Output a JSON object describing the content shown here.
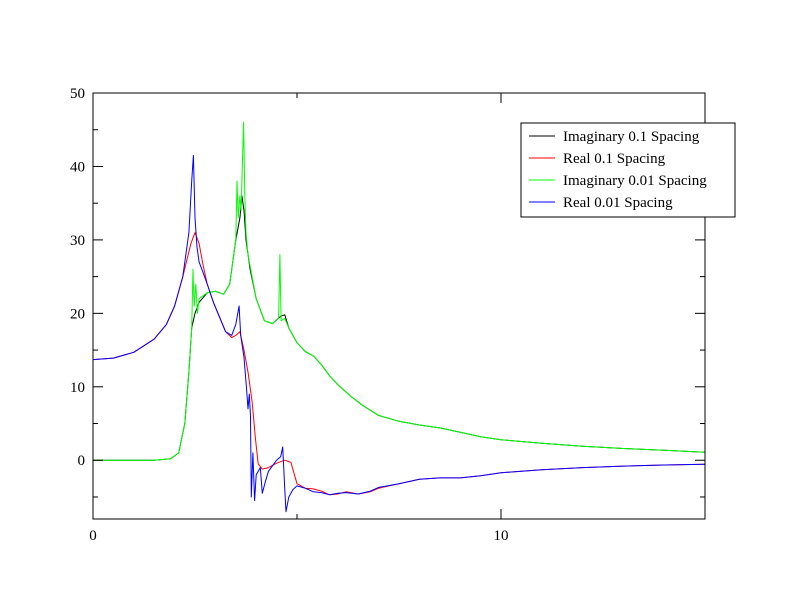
{
  "chart_data": {
    "type": "line",
    "title": "",
    "xlabel": "",
    "ylabel": "",
    "xlim": [
      0,
      15
    ],
    "ylim": [
      -8,
      50
    ],
    "x_ticks": [
      0,
      10
    ],
    "y_ticks": [
      0,
      10,
      20,
      30,
      40,
      50
    ],
    "grid": false,
    "legend_position": "top-right",
    "series": [
      {
        "name": "Imaginary 0.1 Spacing",
        "color": "#000000",
        "points": [
          [
            0,
            0
          ],
          [
            1,
            0
          ],
          [
            1.5,
            0
          ],
          [
            1.9,
            0.2
          ],
          [
            2.1,
            1
          ],
          [
            2.25,
            5
          ],
          [
            2.35,
            12
          ],
          [
            2.42,
            18
          ],
          [
            2.5,
            20
          ],
          [
            2.6,
            21.5
          ],
          [
            2.8,
            22.8
          ],
          [
            3.0,
            23
          ],
          [
            3.2,
            22.6
          ],
          [
            3.35,
            24
          ],
          [
            3.5,
            30
          ],
          [
            3.6,
            33
          ],
          [
            3.65,
            36
          ],
          [
            3.7,
            34
          ],
          [
            3.75,
            30
          ],
          [
            3.85,
            26
          ],
          [
            4.0,
            22
          ],
          [
            4.2,
            19
          ],
          [
            4.4,
            18.6
          ],
          [
            4.6,
            19.6
          ],
          [
            4.7,
            19.8
          ],
          [
            4.8,
            18
          ],
          [
            5.0,
            16
          ],
          [
            5.2,
            14.8
          ],
          [
            5.4,
            14.2
          ],
          [
            5.6,
            13
          ],
          [
            5.8,
            11.5
          ],
          [
            6.0,
            10.3
          ],
          [
            6.3,
            8.8
          ],
          [
            6.6,
            7.5
          ],
          [
            7.0,
            6.1
          ],
          [
            7.5,
            5.3
          ],
          [
            8.0,
            4.8
          ],
          [
            8.5,
            4.4
          ],
          [
            9.0,
            3.8
          ],
          [
            9.5,
            3.2
          ],
          [
            10,
            2.8
          ],
          [
            11,
            2.3
          ],
          [
            12,
            1.9
          ],
          [
            13,
            1.6
          ],
          [
            14,
            1.35
          ],
          [
            15,
            1.1
          ]
        ]
      },
      {
        "name": "Real 0.1 Spacing",
        "color": "#ff0000",
        "points": [
          [
            0,
            13.7
          ],
          [
            0.5,
            13.9
          ],
          [
            1.0,
            14.7
          ],
          [
            1.5,
            16.5
          ],
          [
            1.8,
            18.5
          ],
          [
            2.0,
            21
          ],
          [
            2.2,
            25
          ],
          [
            2.4,
            29.5
          ],
          [
            2.5,
            31
          ],
          [
            2.6,
            29.5
          ],
          [
            2.7,
            26.5
          ],
          [
            2.8,
            24
          ],
          [
            2.95,
            21.5
          ],
          [
            3.1,
            19.5
          ],
          [
            3.25,
            17.5
          ],
          [
            3.4,
            16.7
          ],
          [
            3.5,
            17
          ],
          [
            3.6,
            17.5
          ],
          [
            3.7,
            15
          ],
          [
            3.8,
            12
          ],
          [
            3.9,
            8
          ],
          [
            3.98,
            3
          ],
          [
            4.05,
            -0.5
          ],
          [
            4.15,
            -1.2
          ],
          [
            4.3,
            -1
          ],
          [
            4.5,
            -0.4
          ],
          [
            4.7,
            0
          ],
          [
            4.85,
            -0.3
          ],
          [
            5.0,
            -3.2
          ],
          [
            5.2,
            -3.8
          ],
          [
            5.4,
            -3.9
          ],
          [
            5.6,
            -4.2
          ],
          [
            5.8,
            -4.7
          ],
          [
            6.0,
            -4.6
          ],
          [
            6.2,
            -4.3
          ],
          [
            6.5,
            -4.6
          ],
          [
            6.8,
            -4.3
          ],
          [
            7.0,
            -3.8
          ],
          [
            7.5,
            -3.2
          ],
          [
            8.0,
            -2.6
          ],
          [
            8.5,
            -2.4
          ],
          [
            9.0,
            -2.4
          ],
          [
            9.5,
            -2.1
          ],
          [
            10,
            -1.7
          ],
          [
            11,
            -1.3
          ],
          [
            12,
            -1
          ],
          [
            13,
            -0.8
          ],
          [
            14,
            -0.65
          ],
          [
            15,
            -0.55
          ]
        ]
      },
      {
        "name": "Imaginary 0.01 Spacing",
        "color": "#00ff00",
        "points": [
          [
            0,
            0
          ],
          [
            1,
            0
          ],
          [
            1.5,
            0
          ],
          [
            1.9,
            0.2
          ],
          [
            2.1,
            1
          ],
          [
            2.25,
            5
          ],
          [
            2.35,
            12
          ],
          [
            2.42,
            18
          ],
          [
            2.45,
            26
          ],
          [
            2.48,
            21
          ],
          [
            2.52,
            24
          ],
          [
            2.56,
            20
          ],
          [
            2.6,
            22
          ],
          [
            2.8,
            22.8
          ],
          [
            3.0,
            23
          ],
          [
            3.2,
            22.6
          ],
          [
            3.35,
            24
          ],
          [
            3.45,
            28
          ],
          [
            3.5,
            30
          ],
          [
            3.53,
            38
          ],
          [
            3.56,
            33
          ],
          [
            3.6,
            36
          ],
          [
            3.63,
            34
          ],
          [
            3.66,
            40
          ],
          [
            3.69,
            46
          ],
          [
            3.72,
            36
          ],
          [
            3.75,
            31
          ],
          [
            3.8,
            28
          ],
          [
            3.9,
            25
          ],
          [
            4.0,
            22
          ],
          [
            4.2,
            19
          ],
          [
            4.4,
            18.6
          ],
          [
            4.55,
            19.4
          ],
          [
            4.58,
            28
          ],
          [
            4.61,
            19
          ],
          [
            4.7,
            19.3
          ],
          [
            4.8,
            18
          ],
          [
            5.0,
            16
          ],
          [
            5.2,
            14.8
          ],
          [
            5.4,
            14.2
          ],
          [
            5.6,
            13
          ],
          [
            5.8,
            11.5
          ],
          [
            6.0,
            10.3
          ],
          [
            6.3,
            8.8
          ],
          [
            6.6,
            7.5
          ],
          [
            7.0,
            6.1
          ],
          [
            7.5,
            5.3
          ],
          [
            8.0,
            4.8
          ],
          [
            8.5,
            4.4
          ],
          [
            9.0,
            3.8
          ],
          [
            9.5,
            3.2
          ],
          [
            10,
            2.8
          ],
          [
            11,
            2.3
          ],
          [
            12,
            1.9
          ],
          [
            13,
            1.6
          ],
          [
            14,
            1.35
          ],
          [
            15,
            1.1
          ]
        ]
      },
      {
        "name": "Real 0.01 Spacing",
        "color": "#0000ff",
        "points": [
          [
            0,
            13.7
          ],
          [
            0.5,
            13.9
          ],
          [
            1.0,
            14.7
          ],
          [
            1.5,
            16.5
          ],
          [
            1.8,
            18.5
          ],
          [
            2.0,
            21
          ],
          [
            2.2,
            25
          ],
          [
            2.35,
            31
          ],
          [
            2.42,
            38
          ],
          [
            2.46,
            41.5
          ],
          [
            2.5,
            33
          ],
          [
            2.55,
            29
          ],
          [
            2.6,
            27
          ],
          [
            2.7,
            25.5
          ],
          [
            2.8,
            24
          ],
          [
            2.95,
            21.5
          ],
          [
            3.1,
            19.5
          ],
          [
            3.25,
            17.5
          ],
          [
            3.4,
            17
          ],
          [
            3.5,
            18.5
          ],
          [
            3.58,
            21
          ],
          [
            3.62,
            17
          ],
          [
            3.7,
            14
          ],
          [
            3.76,
            10
          ],
          [
            3.8,
            7
          ],
          [
            3.83,
            9
          ],
          [
            3.86,
            6
          ],
          [
            3.88,
            -5
          ],
          [
            3.92,
            1
          ],
          [
            3.96,
            -5.5
          ],
          [
            4.0,
            -2
          ],
          [
            4.1,
            -1
          ],
          [
            4.15,
            -4.5
          ],
          [
            4.22,
            -3
          ],
          [
            4.3,
            -1.5
          ],
          [
            4.5,
            0
          ],
          [
            4.6,
            0.5
          ],
          [
            4.65,
            1.8
          ],
          [
            4.7,
            -4
          ],
          [
            4.73,
            -7
          ],
          [
            4.8,
            -5
          ],
          [
            4.9,
            -4
          ],
          [
            5.0,
            -3.5
          ],
          [
            5.2,
            -3.8
          ],
          [
            5.4,
            -4.3
          ],
          [
            5.6,
            -4.4
          ],
          [
            5.8,
            -4.7
          ],
          [
            6.0,
            -4.5
          ],
          [
            6.2,
            -4.4
          ],
          [
            6.5,
            -4.6
          ],
          [
            6.8,
            -4.2
          ],
          [
            7.0,
            -3.7
          ],
          [
            7.5,
            -3.2
          ],
          [
            8.0,
            -2.6
          ],
          [
            8.5,
            -2.4
          ],
          [
            9.0,
            -2.4
          ],
          [
            9.5,
            -2.1
          ],
          [
            10,
            -1.7
          ],
          [
            11,
            -1.3
          ],
          [
            12,
            -1
          ],
          [
            13,
            -0.8
          ],
          [
            14,
            -0.65
          ],
          [
            15,
            -0.55
          ]
        ]
      }
    ]
  }
}
